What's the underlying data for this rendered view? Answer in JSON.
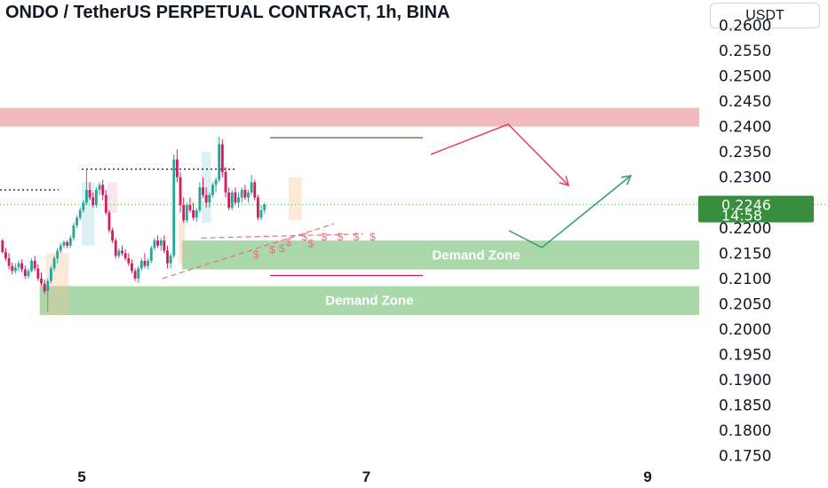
{
  "header": {
    "title": "ONDO / TetherUS PERPETUAL CONTRACT, 1h, BINA",
    "currency_button": "USDT"
  },
  "colors": {
    "bull": "#26a69a",
    "bear": "#d81b60",
    "supply_zone": "#f1b6b8",
    "demand_zone": "#a5d6a7",
    "price_tag": "#388e3c",
    "arrow_red": "#e0435a",
    "arrow_green": "#2e9d6e",
    "liquidity_marks": "#e8707e"
  },
  "current_price": {
    "value": "0.2246",
    "countdown": "14:58"
  },
  "chart_data": {
    "type": "candlestick",
    "y_ticks": [
      "0.2600",
      "0.2550",
      "0.2500",
      "0.2450",
      "0.2400",
      "0.2350",
      "0.2300",
      "0.2250",
      "0.2200",
      "0.2150",
      "0.2100",
      "0.2050",
      "0.2000",
      "0.1950",
      "0.1900",
      "0.1850",
      "0.1800",
      "0.1750"
    ],
    "x_ticks": [
      {
        "label": "5",
        "bar": 25
      },
      {
        "label": "7",
        "bar": 113
      },
      {
        "label": "9",
        "bar": 200
      }
    ],
    "ylim": [
      0.1735,
      0.2628
    ],
    "candles": [
      [
        0.2175,
        0.2178,
        0.215,
        0.2152
      ],
      [
        0.2152,
        0.216,
        0.2135,
        0.214
      ],
      [
        0.214,
        0.215,
        0.2118,
        0.2125
      ],
      [
        0.2125,
        0.2132,
        0.2108,
        0.2115
      ],
      [
        0.2115,
        0.213,
        0.211,
        0.2122
      ],
      [
        0.2122,
        0.2135,
        0.2115,
        0.213
      ],
      [
        0.213,
        0.2138,
        0.2112,
        0.2118
      ],
      [
        0.2118,
        0.2125,
        0.21,
        0.2105
      ],
      [
        0.2105,
        0.212,
        0.21,
        0.2115
      ],
      [
        0.2115,
        0.214,
        0.2112,
        0.2135
      ],
      [
        0.2135,
        0.2145,
        0.2115,
        0.212
      ],
      [
        0.212,
        0.2128,
        0.2095,
        0.21
      ],
      [
        0.21,
        0.2112,
        0.2085,
        0.209
      ],
      [
        0.209,
        0.2098,
        0.207,
        0.2075
      ],
      [
        0.2075,
        0.21,
        0.2035,
        0.2095
      ],
      [
        0.2095,
        0.2125,
        0.209,
        0.212
      ],
      [
        0.212,
        0.2145,
        0.2115,
        0.214
      ],
      [
        0.214,
        0.216,
        0.213,
        0.2155
      ],
      [
        0.2155,
        0.217,
        0.215,
        0.2165
      ],
      [
        0.2165,
        0.2175,
        0.216,
        0.2172
      ],
      [
        0.2172,
        0.2175,
        0.216,
        0.2165
      ],
      [
        0.2165,
        0.2185,
        0.216,
        0.218
      ],
      [
        0.218,
        0.221,
        0.2175,
        0.2205
      ],
      [
        0.2205,
        0.2225,
        0.22,
        0.222
      ],
      [
        0.222,
        0.224,
        0.2215,
        0.2235
      ],
      [
        0.2235,
        0.2255,
        0.223,
        0.225
      ],
      [
        0.225,
        0.2316,
        0.2245,
        0.2275
      ],
      [
        0.2275,
        0.229,
        0.2255,
        0.226
      ],
      [
        0.226,
        0.227,
        0.224,
        0.2245
      ],
      [
        0.2245,
        0.228,
        0.224,
        0.2275
      ],
      [
        0.2275,
        0.229,
        0.2265,
        0.2285
      ],
      [
        0.2285,
        0.2295,
        0.2255,
        0.2265
      ],
      [
        0.2265,
        0.2275,
        0.2225,
        0.223
      ],
      [
        0.223,
        0.2235,
        0.219,
        0.2195
      ],
      [
        0.2195,
        0.22,
        0.217,
        0.2175
      ],
      [
        0.2175,
        0.218,
        0.214,
        0.2145
      ],
      [
        0.2145,
        0.216,
        0.214,
        0.2155
      ],
      [
        0.2155,
        0.2165,
        0.2145,
        0.215
      ],
      [
        0.215,
        0.2158,
        0.2135,
        0.214
      ],
      [
        0.214,
        0.215,
        0.2125,
        0.213
      ],
      [
        0.213,
        0.2138,
        0.211,
        0.2115
      ],
      [
        0.2115,
        0.212,
        0.2095,
        0.21
      ],
      [
        0.21,
        0.2125,
        0.2092,
        0.212
      ],
      [
        0.212,
        0.214,
        0.2115,
        0.2135
      ],
      [
        0.2135,
        0.215,
        0.212,
        0.2125
      ],
      [
        0.2125,
        0.214,
        0.2118,
        0.2135
      ],
      [
        0.2135,
        0.2165,
        0.213,
        0.216
      ],
      [
        0.216,
        0.218,
        0.2155,
        0.2175
      ],
      [
        0.2175,
        0.2185,
        0.216,
        0.2165
      ],
      [
        0.2165,
        0.218,
        0.2155,
        0.2175
      ],
      [
        0.2175,
        0.2185,
        0.215,
        0.2155
      ],
      [
        0.2155,
        0.2165,
        0.212,
        0.213
      ],
      [
        0.213,
        0.215,
        0.212,
        0.2145
      ],
      [
        0.2145,
        0.2345,
        0.214,
        0.2335
      ],
      [
        0.2335,
        0.2355,
        0.229,
        0.23
      ],
      [
        0.23,
        0.231,
        0.223,
        0.2245
      ],
      [
        0.2245,
        0.226,
        0.221,
        0.2215
      ],
      [
        0.2215,
        0.225,
        0.221,
        0.2245
      ],
      [
        0.2245,
        0.226,
        0.223,
        0.2235
      ],
      [
        0.2235,
        0.225,
        0.2215,
        0.222
      ],
      [
        0.222,
        0.224,
        0.2212,
        0.2235
      ],
      [
        0.2235,
        0.229,
        0.223,
        0.228
      ],
      [
        0.228,
        0.23,
        0.226,
        0.2265
      ],
      [
        0.2265,
        0.228,
        0.224,
        0.225
      ],
      [
        0.225,
        0.227,
        0.224,
        0.2265
      ],
      [
        0.2265,
        0.229,
        0.226,
        0.2285
      ],
      [
        0.2285,
        0.23,
        0.227,
        0.2295
      ],
      [
        0.2295,
        0.238,
        0.229,
        0.2365
      ],
      [
        0.2365,
        0.2375,
        0.23,
        0.231
      ],
      [
        0.231,
        0.232,
        0.226,
        0.227
      ],
      [
        0.227,
        0.228,
        0.2235,
        0.224
      ],
      [
        0.224,
        0.2275,
        0.2235,
        0.227
      ],
      [
        0.227,
        0.228,
        0.2245,
        0.225
      ],
      [
        0.225,
        0.227,
        0.224,
        0.226
      ],
      [
        0.226,
        0.228,
        0.225,
        0.2275
      ],
      [
        0.2275,
        0.2285,
        0.2255,
        0.226
      ],
      [
        0.226,
        0.2275,
        0.225,
        0.227
      ],
      [
        0.227,
        0.2305,
        0.2265,
        0.229
      ],
      [
        0.229,
        0.2295,
        0.2255,
        0.226
      ],
      [
        0.226,
        0.2265,
        0.2215,
        0.222
      ],
      [
        0.222,
        0.2245,
        0.2215,
        0.2235
      ],
      [
        0.2235,
        0.225,
        0.2228,
        0.2246
      ]
    ],
    "zones": [
      {
        "name": "supply",
        "low": 0.24,
        "high": 0.2437,
        "start_bar": -1,
        "label": ""
      },
      {
        "name": "demand-1",
        "low": 0.2118,
        "high": 0.2175,
        "start_bar": 56,
        "label": "Demand Zone"
      },
      {
        "name": "demand-2",
        "low": 0.2028,
        "high": 0.2085,
        "start_bar": 12,
        "label": "Demand Zone"
      }
    ],
    "liquidity_label": "$",
    "liquidity_marks": [
      {
        "bar": 78,
        "price": 0.214
      },
      {
        "bar": 83,
        "price": 0.215
      },
      {
        "bar": 88,
        "price": 0.2165
      },
      {
        "bar": 93,
        "price": 0.2175
      },
      {
        "bar": 99,
        "price": 0.2175
      },
      {
        "bar": 104,
        "price": 0.2175
      },
      {
        "bar": 109,
        "price": 0.2175
      },
      {
        "bar": 114,
        "price": 0.2175
      },
      {
        "bar": 86,
        "price": 0.2152
      },
      {
        "bar": 95,
        "price": 0.2162
      }
    ]
  }
}
